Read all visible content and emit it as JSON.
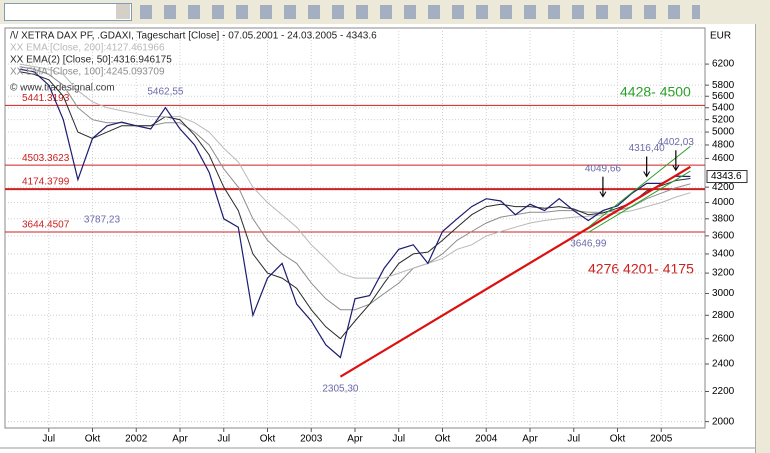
{
  "chart_data": {
    "type": "line",
    "log_y": true,
    "grid": true,
    "currency": "EUR",
    "last_price": 4343.6,
    "copyright": "© www.tradesignal.com",
    "xlim": [
      "2001-04",
      "2005-04"
    ],
    "xticks": [
      {
        "value": "2001-07",
        "label": "Jul"
      },
      {
        "value": "2001-10",
        "label": "Okt"
      },
      {
        "value": "2002-01",
        "label": "2002"
      },
      {
        "value": "2002-04",
        "label": "Apr"
      },
      {
        "value": "2002-07",
        "label": "Jul"
      },
      {
        "value": "2002-10",
        "label": "Okt"
      },
      {
        "value": "2003-01",
        "label": "2003"
      },
      {
        "value": "2003-04",
        "label": "Apr"
      },
      {
        "value": "2003-07",
        "label": "Jul"
      },
      {
        "value": "2003-10",
        "label": "Okt"
      },
      {
        "value": "2004-01",
        "label": "2004"
      },
      {
        "value": "2004-04",
        "label": "Apr"
      },
      {
        "value": "2004-07",
        "label": "Jul"
      },
      {
        "value": "2004-10",
        "label": "Okt"
      },
      {
        "value": "2005-01",
        "label": "2005"
      }
    ],
    "ylim": [
      1960,
      6950
    ],
    "yticks": [
      2000,
      2200,
      2400,
      2600,
      2800,
      3000,
      3200,
      3400,
      3600,
      3800,
      4000,
      4200,
      4600,
      4800,
      5000,
      5200,
      5400,
      5600,
      5800,
      6200
    ],
    "x": [
      "2001-05",
      "2001-06",
      "2001-07",
      "2001-08",
      "2001-09",
      "2001-10",
      "2001-11",
      "2001-12",
      "2002-01",
      "2002-02",
      "2002-03",
      "2002-04",
      "2002-05",
      "2002-06",
      "2002-07",
      "2002-08",
      "2002-09",
      "2002-10",
      "2002-11",
      "2002-12",
      "2003-01",
      "2003-02",
      "2003-03",
      "2003-04",
      "2003-05",
      "2003-06",
      "2003-07",
      "2003-08",
      "2003-09",
      "2003-10",
      "2003-11",
      "2003-12",
      "2004-01",
      "2004-02",
      "2004-03",
      "2004-04",
      "2004-05",
      "2004-06",
      "2004-07",
      "2004-08",
      "2004-09",
      "2004-10",
      "2004-11",
      "2004-12",
      "2005-01",
      "2005-02",
      "2005-03"
    ],
    "series": [
      {
        "name": "/\\/ XETRA DAX PF, .GDAXI, Tageschart [Close] - 07.05.2001 - 24.03.2005 - 4343.6",
        "color": "#1c1c70",
        "width": 1.2,
        "values": [
          6100,
          6050,
          5800,
          5200,
          4300,
          4900,
          5100,
          5160,
          5100,
          5050,
          5400,
          5050,
          4800,
          4400,
          3800,
          3700,
          2800,
          3150,
          3300,
          2900,
          2750,
          2550,
          2450,
          2950,
          2980,
          3250,
          3450,
          3500,
          3300,
          3650,
          3800,
          3950,
          4050,
          4020,
          3850,
          3980,
          3900,
          4050,
          3900,
          3780,
          3900,
          3960,
          4120,
          4250,
          4250,
          4350,
          4343.6
        ]
      },
      {
        "name": "XX EMA [Close, 200]:4127.461966",
        "color": "#b8b8b8",
        "width": 1,
        "values": [
          6200,
          6150,
          6100,
          6000,
          5700,
          5500,
          5400,
          5350,
          5300,
          5250,
          5250,
          5250,
          5150,
          5000,
          4750,
          4550,
          4200,
          4000,
          3850,
          3700,
          3500,
          3350,
          3200,
          3150,
          3150,
          3150,
          3200,
          3250,
          3300,
          3350,
          3450,
          3500,
          3600,
          3650,
          3700,
          3750,
          3780,
          3800,
          3820,
          3830,
          3850,
          3870,
          3900,
          3950,
          4000,
          4070,
          4127.461966
        ]
      },
      {
        "name": "XX EMA(2) [Close, 50]:4316.946175",
        "color": "#2a2a2a",
        "width": 1,
        "values": [
          6050,
          6000,
          5900,
          5600,
          5000,
          4900,
          5000,
          5100,
          5100,
          5100,
          5250,
          5200,
          4950,
          4650,
          4200,
          3900,
          3400,
          3200,
          3150,
          3050,
          2850,
          2700,
          2600,
          2750,
          2900,
          3100,
          3300,
          3400,
          3420,
          3550,
          3700,
          3850,
          3950,
          3980,
          3950,
          3950,
          3930,
          3950,
          3920,
          3850,
          3870,
          3930,
          4000,
          4150,
          4220,
          4290,
          4316.946175
        ]
      },
      {
        "name": "XX EMA [Close, 100]:4245.093709",
        "color": "#8c8c8c",
        "width": 1,
        "values": [
          6150,
          6100,
          6000,
          5800,
          5400,
          5200,
          5150,
          5150,
          5100,
          5100,
          5150,
          5150,
          5000,
          4800,
          4450,
          4200,
          3800,
          3550,
          3400,
          3300,
          3100,
          2950,
          2850,
          2850,
          2900,
          3000,
          3100,
          3250,
          3300,
          3400,
          3550,
          3650,
          3750,
          3820,
          3850,
          3880,
          3880,
          3900,
          3900,
          3880,
          3880,
          3900,
          3950,
          4050,
          4120,
          4190,
          4245.093709
        ]
      }
    ],
    "levels": [
      {
        "value": 5441.3193,
        "label": "5441.3193",
        "color": "#cc2020",
        "width": 1
      },
      {
        "value": 4503.3623,
        "label": "4503.3623",
        "color": "#cc2020",
        "width": 1
      },
      {
        "value": 4174.3799,
        "label": "4174.3799",
        "color": "#cc2020",
        "width": 2
      },
      {
        "value": 3644.4507,
        "label": "3644.4507",
        "color": "#cc2020",
        "width": 1
      }
    ],
    "trendlines": [
      {
        "color": "#dd1010",
        "width": 2.2,
        "x": [
          "2003-03",
          "2005-03"
        ],
        "values": [
          2305.3,
          4480
        ]
      },
      {
        "color": "#2aa02a",
        "width": 1,
        "x": [
          "2004-08",
          "2005-03"
        ],
        "values": [
          3700,
          4780
        ]
      },
      {
        "color": "#2aa02a",
        "width": 1,
        "x": [
          "2004-08",
          "2005-03"
        ],
        "values": [
          3640,
          4420
        ]
      }
    ],
    "points": [
      {
        "x": "2002-03",
        "value": 5462.55,
        "label": "5462,55",
        "pos": "above",
        "arrow": false
      },
      {
        "x": "2001-09",
        "value": 3787.23,
        "label": "3787,23",
        "pos": "right",
        "arrow": false
      },
      {
        "x": "2003-03",
        "value": 2305.3,
        "label": "2305,30",
        "pos": "below",
        "arrow": false
      },
      {
        "x": "2004-08",
        "value": 3646.99,
        "label": "3646,99",
        "pos": "below",
        "arrow": false
      },
      {
        "x": "2004-09",
        "value": 4049.66,
        "label": "4049,66",
        "pos": "above",
        "arrow": true
      },
      {
        "x": "2004-12",
        "value": 4316.4,
        "label": "4316,40",
        "pos": "above",
        "arrow": true
      },
      {
        "x": "2005-02",
        "value": 4402.03,
        "label": "4402,03",
        "pos": "above",
        "arrow": true
      }
    ],
    "notes": [
      {
        "text": "4428- 4500",
        "color": "#2aa02a"
      },
      {
        "text": "4276  4201- 4175",
        "color": "#cc2020"
      }
    ]
  }
}
